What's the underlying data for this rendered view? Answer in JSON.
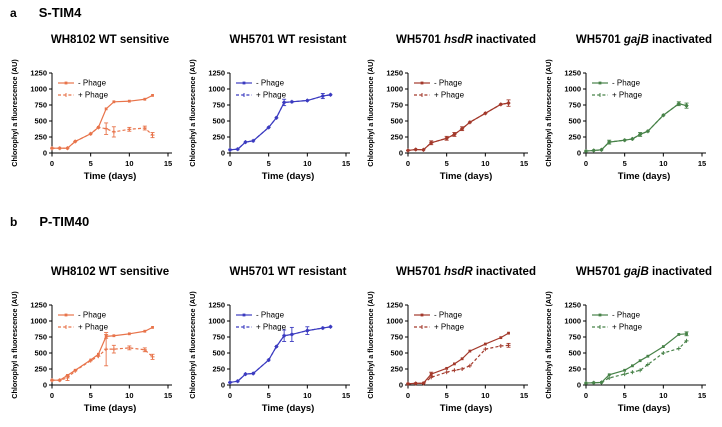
{
  "figure": {
    "panels": [
      {
        "label": "a",
        "title": "S-TIM4"
      },
      {
        "label": "b",
        "title": "P-TIM40"
      }
    ],
    "axis": {
      "xlabel": "Time (days)",
      "ylabel": "Chlorophyl a fluorescence (AU)"
    },
    "legend": {
      "entries": [
        "- Phage",
        "+ Phage"
      ]
    },
    "colors": {
      "orange": "#E8744B",
      "blue": "#3B3BC0",
      "darkred": "#A3392B",
      "green": "#478248"
    }
  },
  "chart_data": [
    {
      "type": "line",
      "panel": "a",
      "title_segments": [
        {
          "text": "WH8102 WT sensitive",
          "italic": false
        }
      ],
      "color": "#E8744B",
      "xlabel": "Time (days)",
      "ylabel": "Chlorophyl a fluorescence (AU)",
      "xlim": [
        0,
        15
      ],
      "ylim": [
        0,
        1250
      ],
      "xticks": [
        0,
        5,
        10,
        15
      ],
      "yticks": [
        0,
        250,
        500,
        750,
        1000,
        1250
      ],
      "x": [
        0,
        1,
        2,
        3,
        5,
        6,
        7,
        8,
        10,
        12,
        13
      ],
      "series": [
        {
          "name": "- Phage",
          "style": "solid",
          "values": [
            75,
            75,
            75,
            180,
            300,
            400,
            690,
            800,
            810,
            840,
            900
          ],
          "err": [
            0,
            0,
            0,
            0,
            0,
            0,
            0,
            0,
            0,
            0,
            0
          ]
        },
        {
          "name": "+ Phage",
          "style": "dashed",
          "values": [
            75,
            75,
            75,
            180,
            300,
            400,
            380,
            330,
            370,
            390,
            280
          ],
          "err": [
            0,
            0,
            0,
            0,
            0,
            0,
            90,
            80,
            30,
            30,
            40
          ]
        }
      ]
    },
    {
      "type": "line",
      "panel": "a",
      "title_segments": [
        {
          "text": "WH5701 WT resistant",
          "italic": false
        }
      ],
      "color": "#3B3BC0",
      "xlabel": "Time (days)",
      "ylabel": "Chlorophyl a fluorescence (AU)",
      "xlim": [
        0,
        15
      ],
      "ylim": [
        0,
        1250
      ],
      "xticks": [
        0,
        5,
        10,
        15
      ],
      "yticks": [
        0,
        250,
        500,
        750,
        1000,
        1250
      ],
      "x": [
        0,
        1,
        2,
        3,
        5,
        6,
        7,
        8,
        10,
        12,
        13
      ],
      "series": [
        {
          "name": "- Phage",
          "style": "solid",
          "values": [
            50,
            60,
            170,
            190,
            400,
            550,
            790,
            800,
            820,
            890,
            910
          ],
          "err": [
            0,
            0,
            0,
            0,
            0,
            0,
            50,
            0,
            0,
            40,
            0
          ]
        },
        {
          "name": "+ Phage",
          "style": "dashed",
          "values": [
            50,
            60,
            170,
            190,
            400,
            550,
            790,
            800,
            820,
            890,
            910
          ],
          "err": [
            0,
            0,
            0,
            0,
            0,
            0,
            0,
            0,
            0,
            0,
            0
          ]
        }
      ]
    },
    {
      "type": "line",
      "panel": "a",
      "title_segments": [
        {
          "text": "WH5701 ",
          "italic": false
        },
        {
          "text": "hsdR",
          "italic": true
        },
        {
          "text": " inactivated",
          "italic": false
        }
      ],
      "color": "#A3392B",
      "xlabel": "Time (days)",
      "ylabel": "Chlorophyl a fluorescence (AU)",
      "xlim": [
        0,
        15
      ],
      "ylim": [
        0,
        1250
      ],
      "xticks": [
        0,
        5,
        10,
        15
      ],
      "yticks": [
        0,
        250,
        500,
        750,
        1000,
        1250
      ],
      "x": [
        0,
        1,
        2,
        3,
        5,
        6,
        7,
        8,
        10,
        12,
        13
      ],
      "series": [
        {
          "name": "- Phage",
          "style": "solid",
          "values": [
            40,
            55,
            50,
            160,
            230,
            290,
            380,
            480,
            620,
            760,
            780
          ],
          "err": [
            0,
            0,
            0,
            30,
            30,
            30,
            30,
            0,
            0,
            0,
            50
          ]
        },
        {
          "name": "+ Phage",
          "style": "dashed",
          "values": [
            40,
            55,
            50,
            160,
            230,
            290,
            380,
            480,
            620,
            760,
            780
          ],
          "err": [
            0,
            0,
            0,
            0,
            0,
            0,
            0,
            0,
            0,
            0,
            0
          ]
        }
      ]
    },
    {
      "type": "line",
      "panel": "a",
      "title_segments": [
        {
          "text": "WH5701 ",
          "italic": false
        },
        {
          "text": "gajB",
          "italic": true
        },
        {
          "text": " inactivated",
          "italic": false
        }
      ],
      "color": "#478248",
      "xlabel": "Time (days)",
      "ylabel": "Chlorophyl a fluorescence (AU)",
      "xlim": [
        0,
        15
      ],
      "ylim": [
        0,
        1250
      ],
      "xticks": [
        0,
        5,
        10,
        15
      ],
      "yticks": [
        0,
        250,
        500,
        750,
        1000,
        1250
      ],
      "x": [
        0,
        1,
        2,
        3,
        5,
        6,
        7,
        8,
        10,
        12,
        13
      ],
      "series": [
        {
          "name": "- Phage",
          "style": "solid",
          "values": [
            30,
            40,
            50,
            170,
            200,
            220,
            290,
            340,
            590,
            770,
            740
          ],
          "err": [
            0,
            0,
            0,
            30,
            0,
            0,
            30,
            0,
            0,
            30,
            40
          ]
        },
        {
          "name": "+ Phage",
          "style": "dashed",
          "values": [
            30,
            40,
            50,
            170,
            200,
            220,
            290,
            340,
            590,
            770,
            740
          ],
          "err": [
            0,
            0,
            0,
            0,
            0,
            0,
            0,
            0,
            0,
            0,
            0
          ]
        }
      ]
    },
    {
      "type": "line",
      "panel": "b",
      "title_segments": [
        {
          "text": "WH8102 WT sensitive",
          "italic": false
        }
      ],
      "color": "#E8744B",
      "xlabel": "Time (days)",
      "ylabel": "Chlorophyl a fluorescence (AU)",
      "xlim": [
        0,
        15
      ],
      "ylim": [
        0,
        1250
      ],
      "xticks": [
        0,
        5,
        10,
        15
      ],
      "yticks": [
        0,
        250,
        500,
        750,
        1000,
        1250
      ],
      "x": [
        0,
        1,
        2,
        3,
        5,
        6,
        7,
        8,
        10,
        12,
        13
      ],
      "series": [
        {
          "name": "- Phage",
          "style": "solid",
          "values": [
            75,
            75,
            150,
            230,
            390,
            480,
            760,
            770,
            800,
            840,
            900
          ],
          "err": [
            0,
            0,
            0,
            0,
            0,
            0,
            30,
            0,
            0,
            0,
            0
          ]
        },
        {
          "name": "+ Phage",
          "style": "dashed",
          "values": [
            75,
            75,
            110,
            220,
            380,
            450,
            560,
            560,
            580,
            550,
            440
          ],
          "err": [
            0,
            0,
            40,
            0,
            0,
            0,
            260,
            60,
            30,
            30,
            40
          ]
        }
      ]
    },
    {
      "type": "line",
      "panel": "b",
      "title_segments": [
        {
          "text": "WH5701 WT resistant",
          "italic": false
        }
      ],
      "color": "#3B3BC0",
      "xlabel": "Time (days)",
      "ylabel": "Chlorophyl a fluorescence (AU)",
      "xlim": [
        0,
        15
      ],
      "ylim": [
        0,
        1250
      ],
      "xticks": [
        0,
        5,
        10,
        15
      ],
      "yticks": [
        0,
        250,
        500,
        750,
        1000,
        1250
      ],
      "x": [
        0,
        1,
        2,
        3,
        5,
        6,
        7,
        8,
        10,
        12,
        13
      ],
      "series": [
        {
          "name": "- Phage",
          "style": "solid",
          "values": [
            40,
            60,
            170,
            180,
            390,
            600,
            770,
            790,
            850,
            890,
            910
          ],
          "err": [
            0,
            0,
            0,
            0,
            0,
            0,
            90,
            110,
            60,
            0,
            0
          ]
        },
        {
          "name": "+ Phage",
          "style": "dashed",
          "values": [
            40,
            60,
            170,
            180,
            390,
            600,
            770,
            790,
            850,
            890,
            910
          ],
          "err": [
            0,
            0,
            0,
            0,
            0,
            0,
            0,
            0,
            0,
            0,
            0
          ]
        }
      ]
    },
    {
      "type": "line",
      "panel": "b",
      "title_segments": [
        {
          "text": "WH5701 ",
          "italic": false
        },
        {
          "text": "hsdR",
          "italic": true
        },
        {
          "text": " inactivated",
          "italic": false
        }
      ],
      "color": "#A3392B",
      "xlabel": "Time (days)",
      "ylabel": "Chlorophyl a fluorescence (AU)",
      "xlim": [
        0,
        15
      ],
      "ylim": [
        0,
        1250
      ],
      "xticks": [
        0,
        5,
        10,
        15
      ],
      "yticks": [
        0,
        250,
        500,
        750,
        1000,
        1250
      ],
      "x": [
        0,
        1,
        2,
        3,
        5,
        6,
        7,
        8,
        10,
        12,
        13
      ],
      "series": [
        {
          "name": "- Phage",
          "style": "solid",
          "values": [
            20,
            25,
            30,
            170,
            260,
            330,
            410,
            530,
            640,
            740,
            810
          ],
          "err": [
            0,
            0,
            0,
            30,
            0,
            0,
            0,
            0,
            0,
            0,
            0
          ]
        },
        {
          "name": "+ Phage",
          "style": "dashed",
          "values": [
            20,
            25,
            25,
            120,
            200,
            230,
            250,
            300,
            560,
            610,
            620
          ],
          "err": [
            0,
            0,
            0,
            0,
            0,
            0,
            0,
            0,
            0,
            0,
            30
          ]
        }
      ]
    },
    {
      "type": "line",
      "panel": "b",
      "title_segments": [
        {
          "text": "WH5701 ",
          "italic": false
        },
        {
          "text": "gajB",
          "italic": true
        },
        {
          "text": " inactivated",
          "italic": false
        }
      ],
      "color": "#478248",
      "xlabel": "Time (days)",
      "ylabel": "Chlorophyl a fluorescence (AU)",
      "xlim": [
        0,
        15
      ],
      "ylim": [
        0,
        1250
      ],
      "xticks": [
        0,
        5,
        10,
        15
      ],
      "yticks": [
        0,
        250,
        500,
        750,
        1000,
        1250
      ],
      "x": [
        0,
        1,
        2,
        3,
        5,
        6,
        7,
        8,
        10,
        12,
        13
      ],
      "series": [
        {
          "name": "- Phage",
          "style": "solid",
          "values": [
            30,
            35,
            40,
            160,
            230,
            300,
            380,
            450,
            600,
            790,
            800
          ],
          "err": [
            0,
            0,
            0,
            0,
            0,
            0,
            0,
            0,
            0,
            0,
            30
          ]
        },
        {
          "name": "+ Phage",
          "style": "dashed",
          "values": [
            30,
            35,
            40,
            110,
            170,
            200,
            230,
            320,
            500,
            570,
            690
          ],
          "err": [
            0,
            0,
            0,
            0,
            0,
            0,
            0,
            0,
            0,
            0,
            0
          ]
        }
      ]
    }
  ]
}
